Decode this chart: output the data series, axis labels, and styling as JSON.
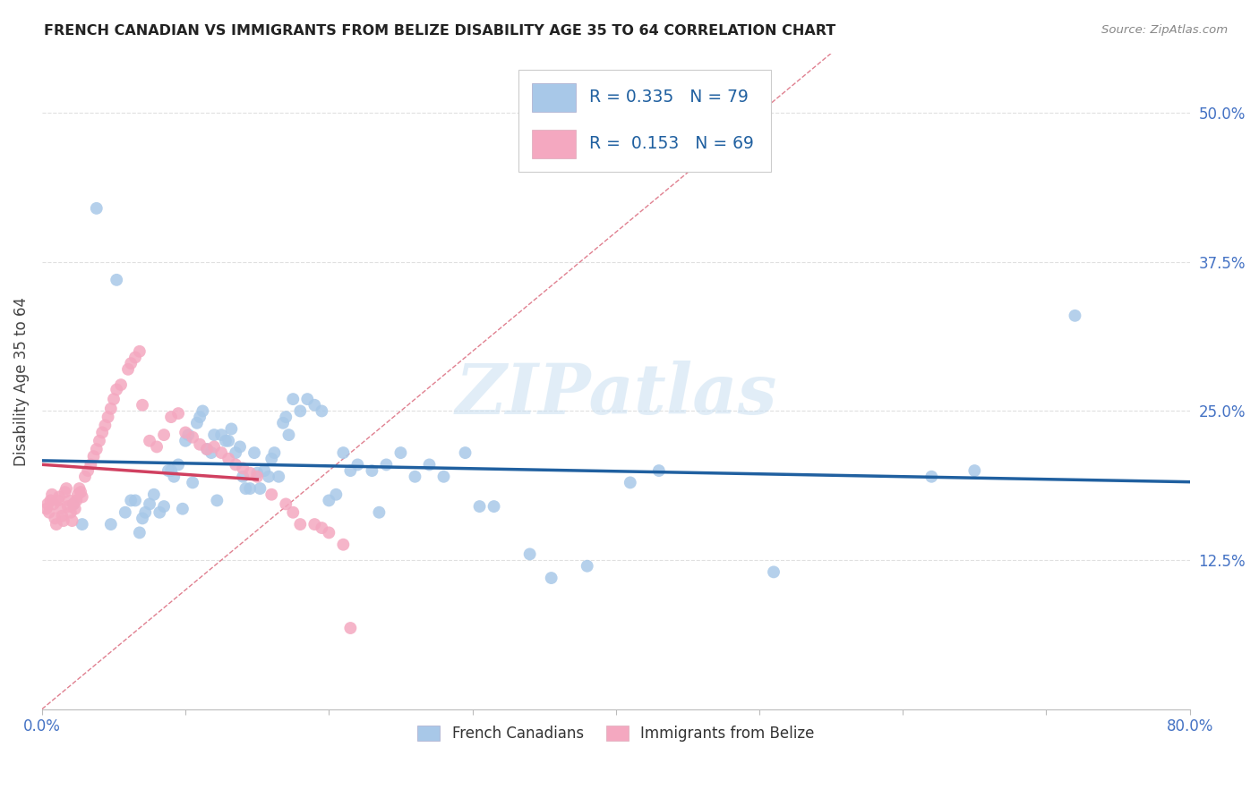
{
  "title": "FRENCH CANADIAN VS IMMIGRANTS FROM BELIZE DISABILITY AGE 35 TO 64 CORRELATION CHART",
  "source": "Source: ZipAtlas.com",
  "ylabel": "Disability Age 35 to 64",
  "xlim": [
    0,
    0.8
  ],
  "ylim": [
    0,
    0.55
  ],
  "xticks": [
    0.0,
    0.1,
    0.2,
    0.3,
    0.4,
    0.5,
    0.6,
    0.7,
    0.8
  ],
  "xticklabels": [
    "0.0%",
    "",
    "",
    "",
    "",
    "",
    "",
    "",
    "80.0%"
  ],
  "ytick_positions": [
    0.125,
    0.25,
    0.375,
    0.5
  ],
  "ytick_labels": [
    "12.5%",
    "25.0%",
    "37.5%",
    "50.0%"
  ],
  "blue_R": "0.335",
  "blue_N": "79",
  "pink_R": "0.153",
  "pink_N": "69",
  "blue_color": "#a8c8e8",
  "pink_color": "#f4a8c0",
  "blue_line_color": "#2060a0",
  "pink_line_color": "#d04060",
  "diagonal_color": "#e08090",
  "watermark": "ZIPatlas",
  "background_color": "#ffffff",
  "grid_color": "#e0e0e0",
  "blue_points_x": [
    0.022,
    0.028,
    0.038,
    0.048,
    0.052,
    0.058,
    0.062,
    0.065,
    0.068,
    0.07,
    0.072,
    0.075,
    0.078,
    0.082,
    0.085,
    0.088,
    0.09,
    0.092,
    0.095,
    0.098,
    0.1,
    0.102,
    0.105,
    0.108,
    0.11,
    0.112,
    0.115,
    0.118,
    0.12,
    0.122,
    0.125,
    0.128,
    0.13,
    0.132,
    0.135,
    0.138,
    0.14,
    0.142,
    0.145,
    0.148,
    0.15,
    0.152,
    0.155,
    0.158,
    0.16,
    0.162,
    0.165,
    0.168,
    0.17,
    0.172,
    0.175,
    0.18,
    0.185,
    0.19,
    0.195,
    0.2,
    0.205,
    0.21,
    0.215,
    0.22,
    0.23,
    0.235,
    0.24,
    0.25,
    0.26,
    0.27,
    0.28,
    0.295,
    0.305,
    0.315,
    0.34,
    0.355,
    0.38,
    0.41,
    0.43,
    0.51,
    0.62,
    0.65,
    0.72
  ],
  "blue_points_y": [
    0.172,
    0.155,
    0.42,
    0.155,
    0.36,
    0.165,
    0.175,
    0.175,
    0.148,
    0.16,
    0.165,
    0.172,
    0.18,
    0.165,
    0.17,
    0.2,
    0.2,
    0.195,
    0.205,
    0.168,
    0.225,
    0.23,
    0.19,
    0.24,
    0.245,
    0.25,
    0.218,
    0.215,
    0.23,
    0.175,
    0.23,
    0.225,
    0.225,
    0.235,
    0.215,
    0.22,
    0.195,
    0.185,
    0.185,
    0.215,
    0.198,
    0.185,
    0.2,
    0.195,
    0.21,
    0.215,
    0.195,
    0.24,
    0.245,
    0.23,
    0.26,
    0.25,
    0.26,
    0.255,
    0.25,
    0.175,
    0.18,
    0.215,
    0.2,
    0.205,
    0.2,
    0.165,
    0.205,
    0.215,
    0.195,
    0.205,
    0.195,
    0.215,
    0.17,
    0.17,
    0.13,
    0.11,
    0.12,
    0.19,
    0.2,
    0.115,
    0.195,
    0.2,
    0.33
  ],
  "pink_points_x": [
    0.003,
    0.004,
    0.005,
    0.006,
    0.007,
    0.008,
    0.009,
    0.01,
    0.011,
    0.012,
    0.013,
    0.014,
    0.015,
    0.016,
    0.017,
    0.018,
    0.019,
    0.02,
    0.021,
    0.022,
    0.023,
    0.024,
    0.025,
    0.026,
    0.027,
    0.028,
    0.03,
    0.032,
    0.034,
    0.036,
    0.038,
    0.04,
    0.042,
    0.044,
    0.046,
    0.048,
    0.05,
    0.052,
    0.055,
    0.06,
    0.062,
    0.065,
    0.068,
    0.07,
    0.075,
    0.08,
    0.085,
    0.09,
    0.095,
    0.1,
    0.105,
    0.11,
    0.115,
    0.12,
    0.125,
    0.13,
    0.135,
    0.14,
    0.145,
    0.15,
    0.16,
    0.17,
    0.175,
    0.18,
    0.19,
    0.195,
    0.2,
    0.21,
    0.215
  ],
  "pink_points_y": [
    0.168,
    0.172,
    0.165,
    0.175,
    0.18,
    0.172,
    0.16,
    0.155,
    0.175,
    0.178,
    0.168,
    0.162,
    0.158,
    0.182,
    0.185,
    0.17,
    0.175,
    0.165,
    0.158,
    0.172,
    0.168,
    0.175,
    0.18,
    0.185,
    0.182,
    0.178,
    0.195,
    0.2,
    0.205,
    0.212,
    0.218,
    0.225,
    0.232,
    0.238,
    0.245,
    0.252,
    0.26,
    0.268,
    0.272,
    0.285,
    0.29,
    0.295,
    0.3,
    0.255,
    0.225,
    0.22,
    0.23,
    0.245,
    0.248,
    0.232,
    0.228,
    0.222,
    0.218,
    0.22,
    0.215,
    0.21,
    0.205,
    0.202,
    0.198,
    0.195,
    0.18,
    0.172,
    0.165,
    0.155,
    0.155,
    0.152,
    0.148,
    0.138,
    0.068
  ]
}
